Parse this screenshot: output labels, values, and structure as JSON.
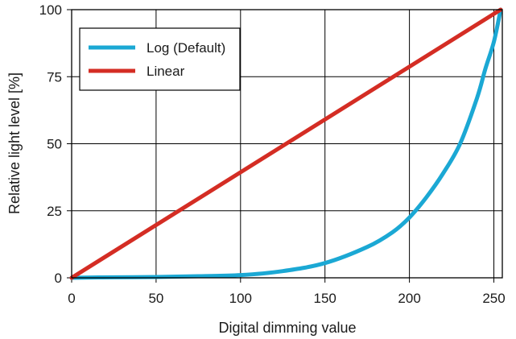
{
  "chart_data": {
    "type": "line",
    "title": "",
    "xlabel": "Digital dimming value",
    "ylabel": "Relative light level [%]",
    "xlim": [
      0,
      255
    ],
    "ylim": [
      0,
      100
    ],
    "x_ticks": [
      0,
      50,
      100,
      150,
      200,
      250
    ],
    "y_ticks": [
      0,
      25,
      50,
      75,
      100
    ],
    "grid": true,
    "legend_position": "top-left",
    "series": [
      {
        "name": "Log (Default)",
        "color": "#1ba8d4",
        "x": [
          0,
          25,
          50,
          75,
          100,
          125,
          150,
          175,
          190,
          200,
          210,
          220,
          230,
          240,
          245,
          250,
          254
        ],
        "y": [
          0,
          0.2,
          0.3,
          0.6,
          1.0,
          2.5,
          5.5,
          11.5,
          17,
          22.5,
          30,
          39,
          50,
          67,
          78,
          88,
          100
        ]
      },
      {
        "name": "Linear",
        "color": "#d42d24",
        "x": [
          0,
          254
        ],
        "y": [
          0,
          100
        ]
      }
    ]
  }
}
